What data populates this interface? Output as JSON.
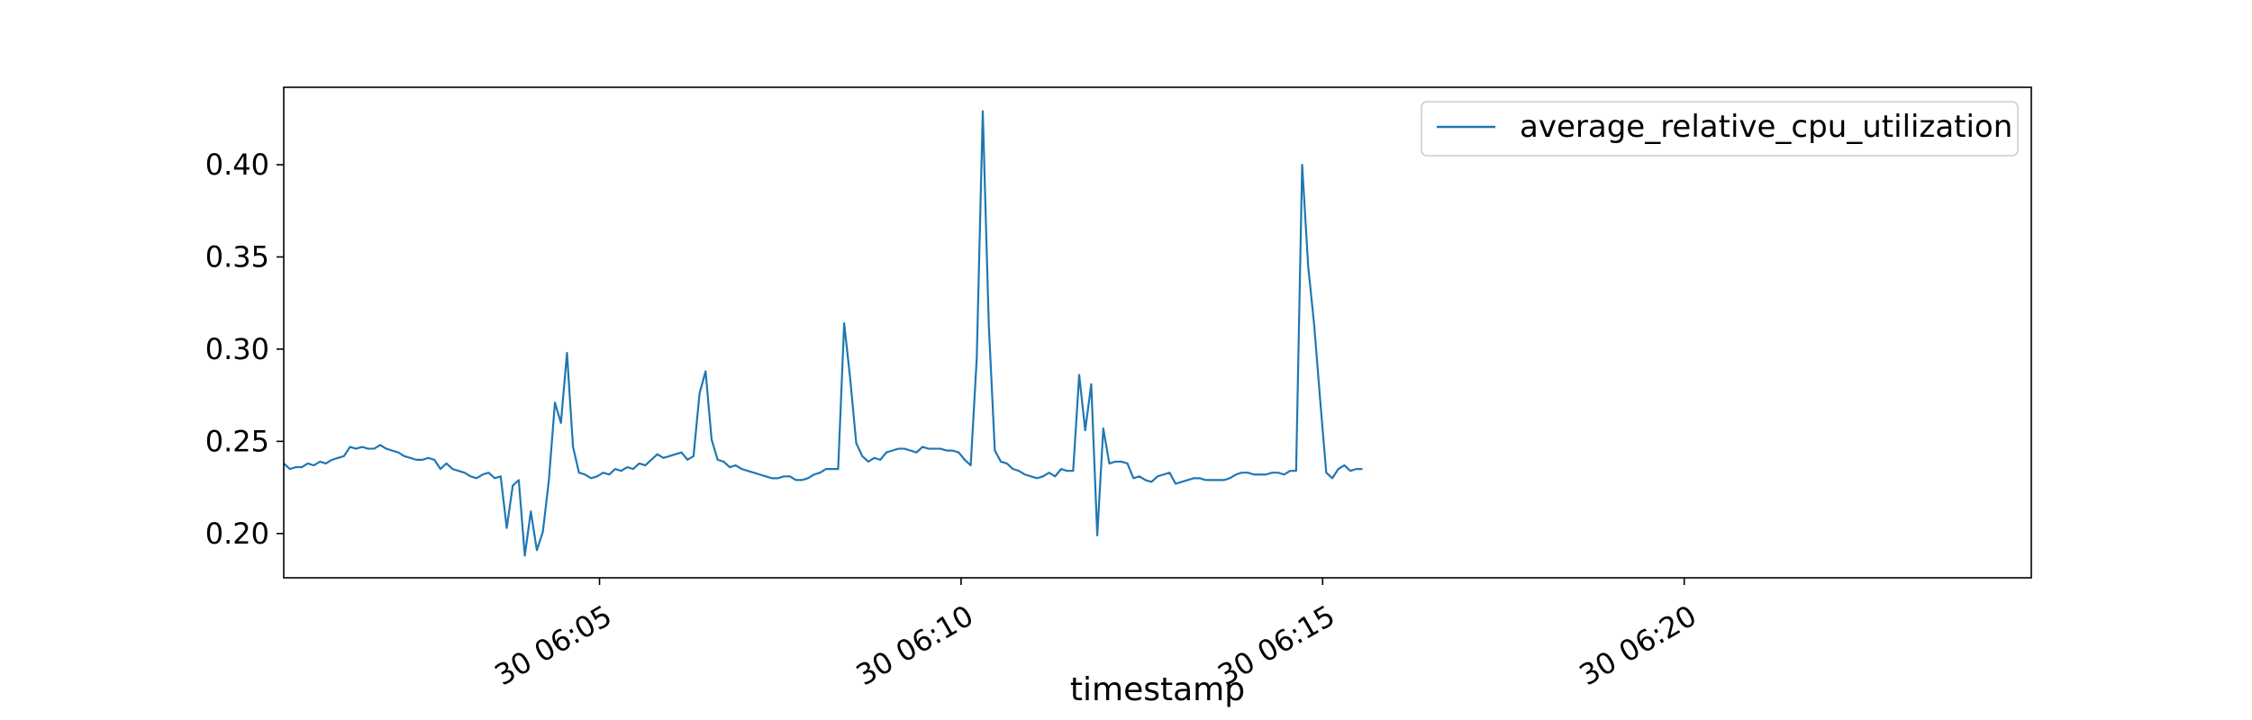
{
  "chart_data": {
    "type": "line",
    "title": "",
    "xlabel": "timestamp",
    "ylabel": "",
    "grid": false,
    "legend_placement": "top-right",
    "series_color": "#1f77b4",
    "xlim": [
      "30 06:00:38",
      "30 06:24:48"
    ],
    "ylim": [
      0.176,
      0.442
    ],
    "x_ticks": [
      {
        "value": "30 06:05:00",
        "label": "30 06:05"
      },
      {
        "value": "30 06:10:00",
        "label": "30 06:10"
      },
      {
        "value": "30 06:15:00",
        "label": "30 06:15"
      },
      {
        "value": "30 06:20:00",
        "label": "30 06:20"
      }
    ],
    "y_ticks": [
      {
        "value": 0.2,
        "label": "0.20"
      },
      {
        "value": 0.25,
        "label": "0.25"
      },
      {
        "value": 0.3,
        "label": "0.30"
      },
      {
        "value": 0.35,
        "label": "0.35"
      },
      {
        "value": 0.4,
        "label": "0.40"
      }
    ],
    "series": [
      {
        "name": "average_relative_cpu_utilization",
        "x_start": "30 06:00:38",
        "x_step_seconds": 5,
        "values": [
          0.238,
          0.235,
          0.236,
          0.236,
          0.238,
          0.237,
          0.239,
          0.238,
          0.24,
          0.241,
          0.242,
          0.247,
          0.246,
          0.247,
          0.246,
          0.246,
          0.248,
          0.246,
          0.245,
          0.244,
          0.242,
          0.241,
          0.24,
          0.24,
          0.241,
          0.24,
          0.235,
          0.238,
          0.235,
          0.234,
          0.233,
          0.231,
          0.23,
          0.232,
          0.233,
          0.23,
          0.231,
          0.203,
          0.226,
          0.229,
          0.188,
          0.212,
          0.191,
          0.201,
          0.229,
          0.271,
          0.26,
          0.298,
          0.247,
          0.233,
          0.232,
          0.23,
          0.231,
          0.233,
          0.232,
          0.235,
          0.234,
          0.236,
          0.235,
          0.238,
          0.237,
          0.24,
          0.243,
          0.241,
          0.242,
          0.243,
          0.244,
          0.24,
          0.242,
          0.276,
          0.288,
          0.251,
          0.24,
          0.239,
          0.236,
          0.237,
          0.235,
          0.234,
          0.233,
          0.232,
          0.231,
          0.23,
          0.23,
          0.231,
          0.231,
          0.229,
          0.229,
          0.23,
          0.232,
          0.233,
          0.235,
          0.235,
          0.235,
          0.314,
          0.284,
          0.249,
          0.242,
          0.239,
          0.241,
          0.24,
          0.244,
          0.245,
          0.246,
          0.246,
          0.245,
          0.244,
          0.247,
          0.246,
          0.246,
          0.246,
          0.245,
          0.245,
          0.244,
          0.24,
          0.237,
          0.295,
          0.429,
          0.313,
          0.245,
          0.239,
          0.238,
          0.235,
          0.234,
          0.232,
          0.231,
          0.23,
          0.231,
          0.233,
          0.231,
          0.235,
          0.234,
          0.234,
          0.286,
          0.256,
          0.281,
          0.199,
          0.257,
          0.238,
          0.239,
          0.239,
          0.238,
          0.23,
          0.231,
          0.229,
          0.228,
          0.231,
          0.232,
          0.233,
          0.227,
          0.228,
          0.229,
          0.23,
          0.23,
          0.229,
          0.229,
          0.229,
          0.229,
          0.23,
          0.232,
          0.233,
          0.233,
          0.232,
          0.232,
          0.232,
          0.233,
          0.233,
          0.232,
          0.234,
          0.234,
          0.4,
          0.345,
          0.313,
          0.272,
          0.233,
          0.23,
          0.235,
          0.237,
          0.234,
          0.235,
          0.235
        ]
      }
    ]
  }
}
